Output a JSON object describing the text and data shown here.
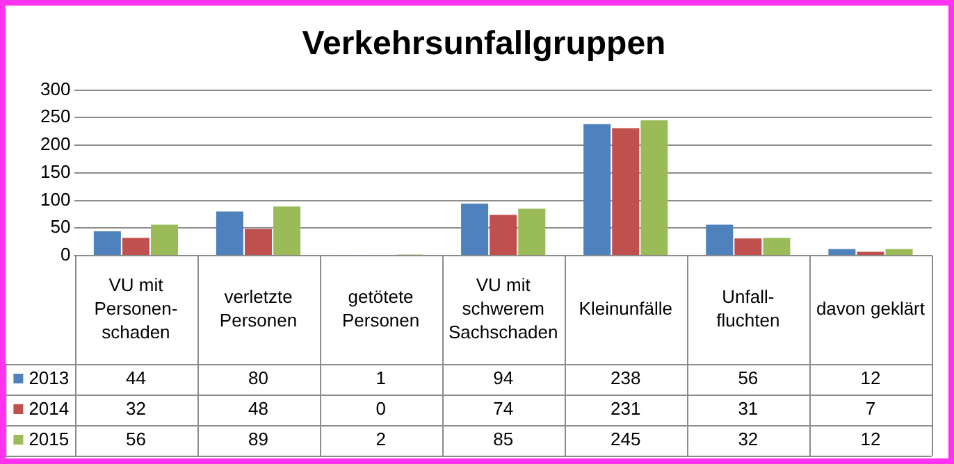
{
  "chart_data": {
    "type": "bar",
    "title": "Verkehrsunfallgruppen",
    "categories": [
      "VU mit Personen-schaden",
      "verletzte Personen",
      "getötete Personen",
      "VU mit schwerem Sachschaden",
      "Kleinunfälle",
      "Unfall-fluchten",
      "davon geklärt"
    ],
    "series": [
      {
        "name": "2013",
        "color": "#4f81bd",
        "values": [
          44,
          80,
          1,
          94,
          238,
          56,
          12
        ]
      },
      {
        "name": "2014",
        "color": "#c0504d",
        "values": [
          32,
          48,
          0,
          74,
          231,
          31,
          7
        ]
      },
      {
        "name": "2015",
        "color": "#9bbb59",
        "values": [
          56,
          89,
          2,
          85,
          245,
          32,
          12
        ]
      }
    ],
    "ylim": [
      0,
      300
    ],
    "yticks": [
      0,
      50,
      100,
      150,
      200,
      250,
      300
    ],
    "grid": "y",
    "legend": "bottom",
    "data_labels": true
  }
}
